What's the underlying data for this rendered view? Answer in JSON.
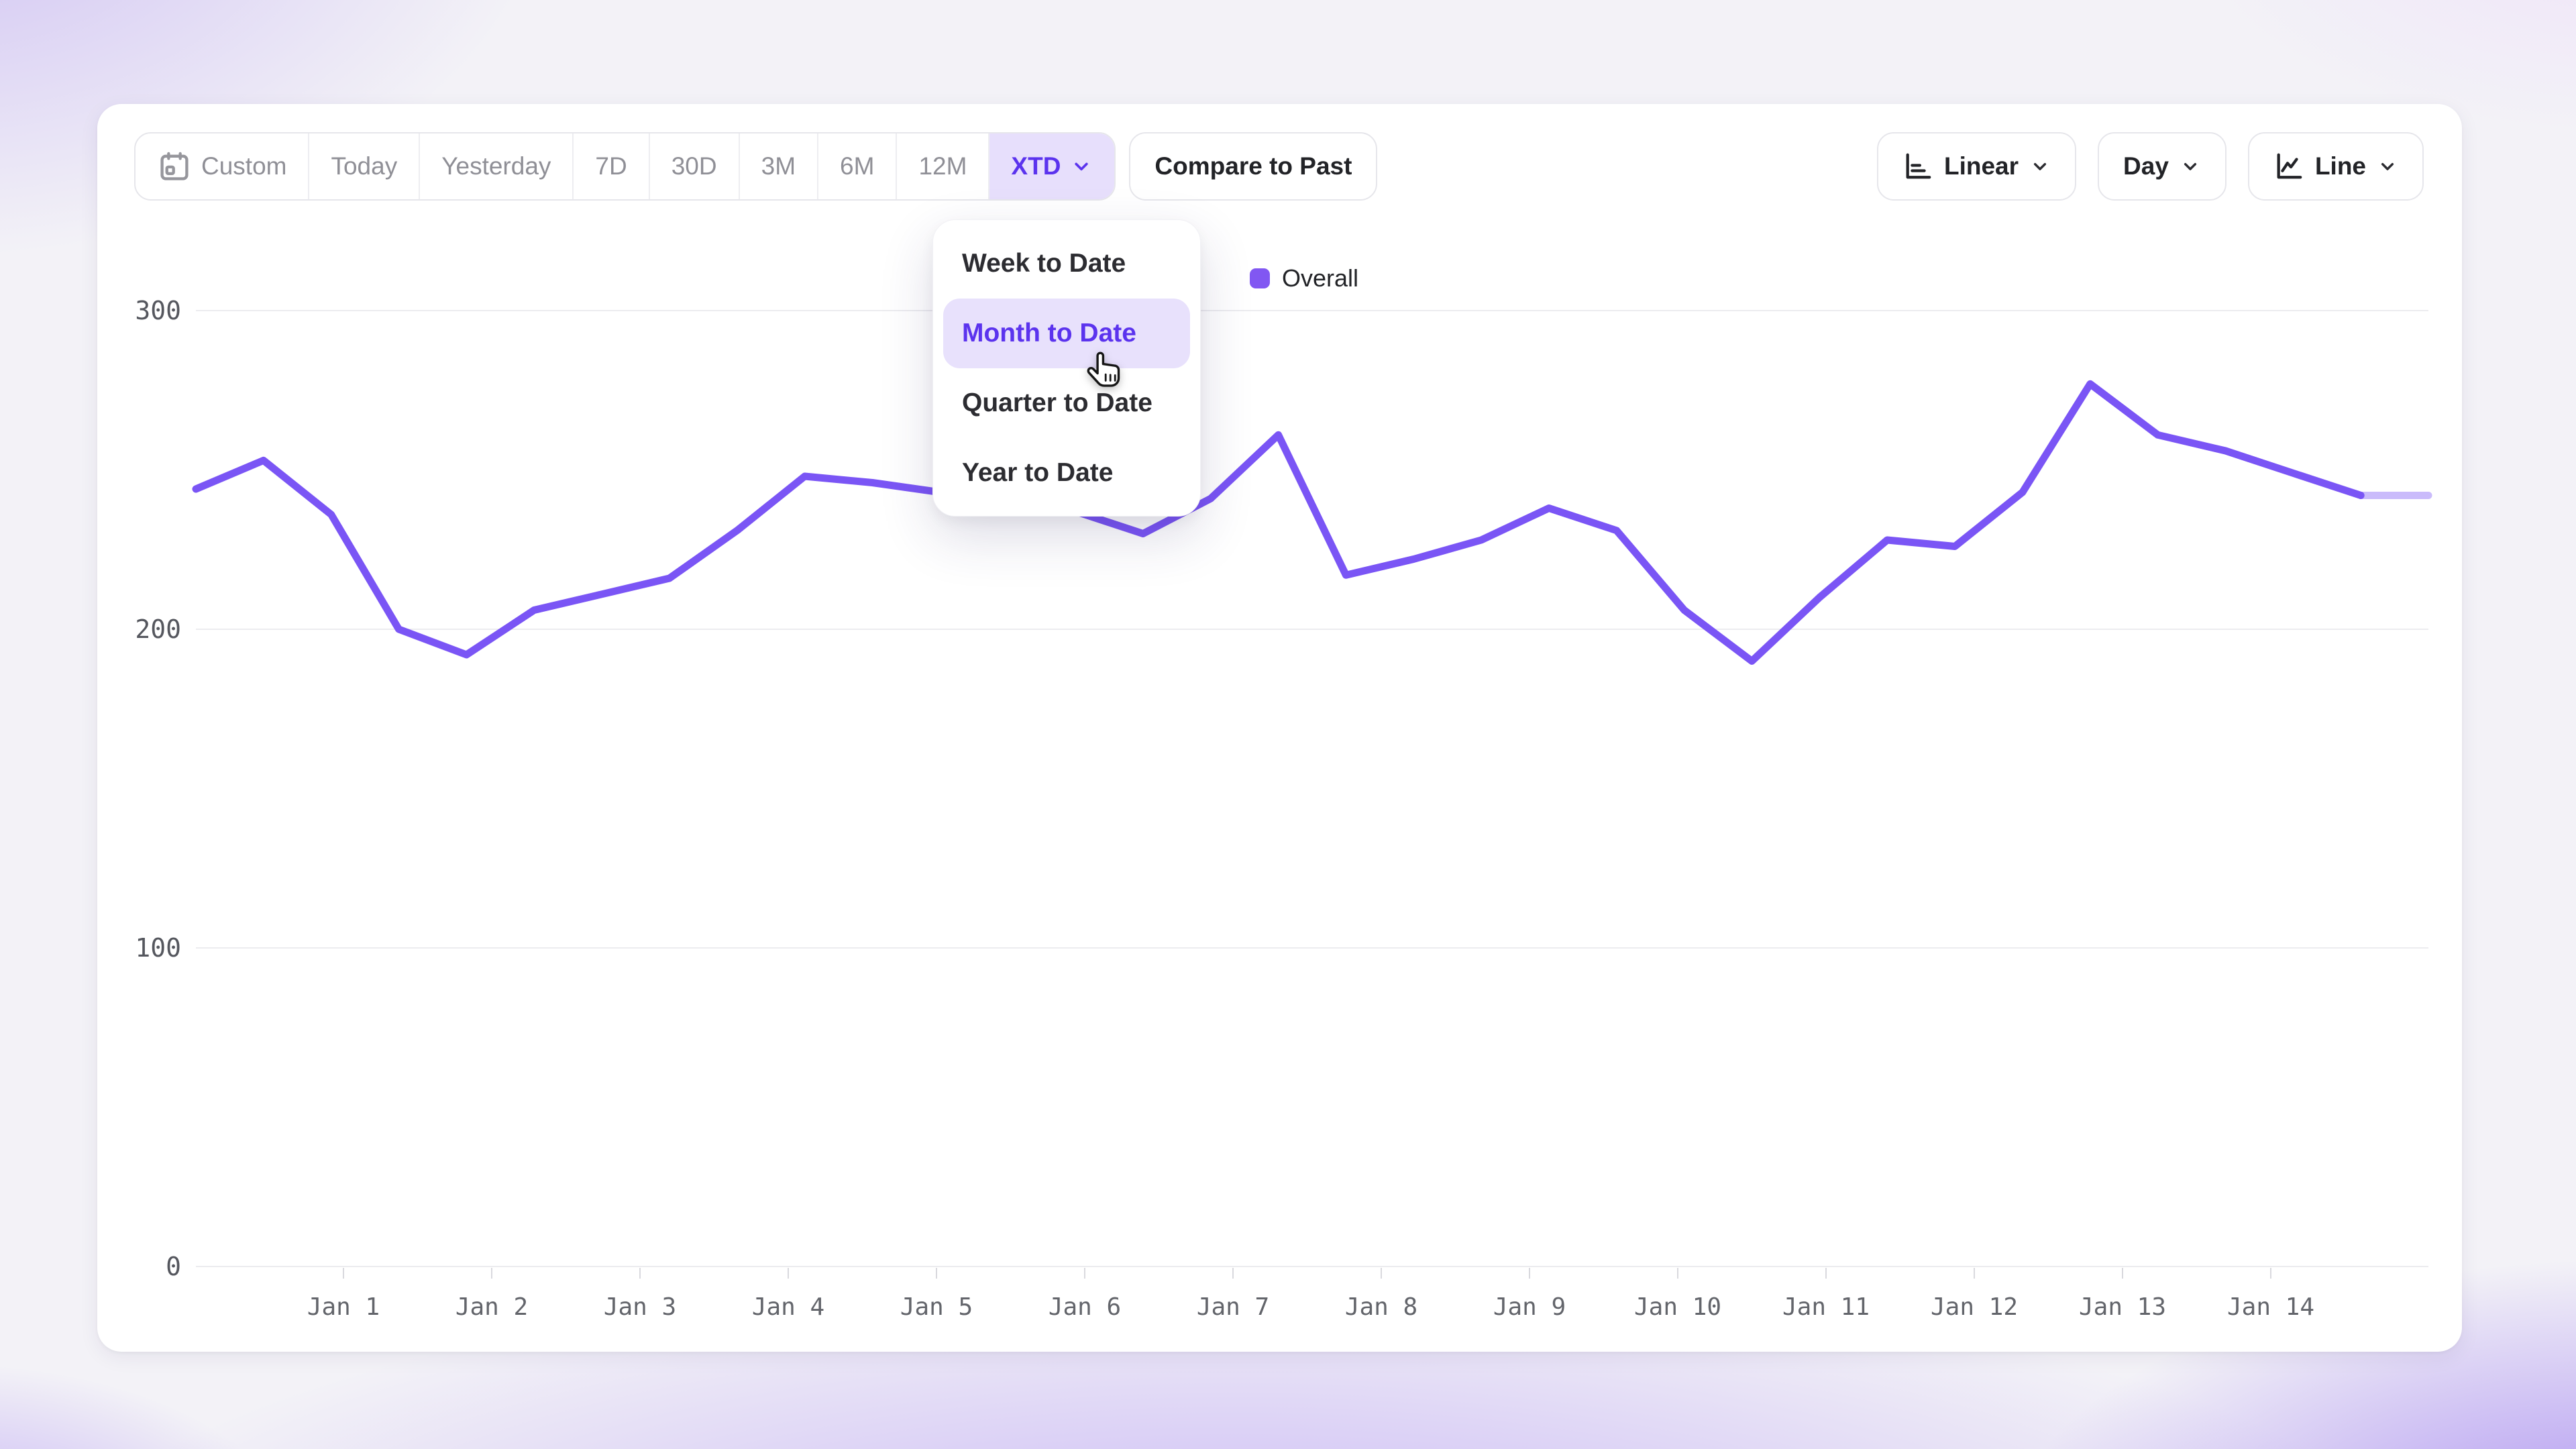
{
  "toolbar": {
    "ranges": [
      {
        "label": "Custom",
        "icon": "calendar"
      },
      {
        "label": "Today"
      },
      {
        "label": "Yesterday"
      },
      {
        "label": "7D"
      },
      {
        "label": "30D"
      },
      {
        "label": "3M"
      },
      {
        "label": "6M"
      },
      {
        "label": "12M"
      },
      {
        "label": "XTD",
        "selected": true,
        "icon": "chevron-down"
      }
    ],
    "compare_button": "Compare to Past",
    "scale_selector": {
      "label": "Linear",
      "icon": "axis"
    },
    "granularity_selector": {
      "label": "Day"
    },
    "chart_type_selector": {
      "label": "Line",
      "icon": "line-chart"
    }
  },
  "dropdown_menu": {
    "items": [
      {
        "label": "Week to Date",
        "active": false
      },
      {
        "label": "Month to Date",
        "active": true
      },
      {
        "label": "Quarter to Date",
        "active": false
      },
      {
        "label": "Year to Date",
        "active": false
      }
    ]
  },
  "legend": {
    "label": "Overall",
    "swatch_color": "#8157f2"
  },
  "chart_data": {
    "type": "line",
    "title": "",
    "series": [
      {
        "name": "Overall",
        "color": "#7a55f5",
        "values": [
          244,
          253,
          236,
          200,
          192,
          206,
          211,
          216,
          231,
          248,
          246,
          243,
          239,
          237,
          230,
          241,
          261,
          217,
          222,
          228,
          238,
          231,
          206,
          190,
          210,
          228,
          226,
          243,
          277,
          261,
          256,
          249,
          242,
          242
        ]
      }
    ],
    "x_tick_labels": [
      "Jan 1",
      "Jan 2",
      "Jan 3",
      "Jan 4",
      "Jan 5",
      "Jan 6",
      "Jan 7",
      "Jan 8",
      "Jan 9",
      "Jan 10",
      "Jan 11",
      "Jan 12",
      "Jan 13",
      "Jan 14"
    ],
    "y_ticks": [
      0,
      100,
      200,
      300
    ],
    "ylim": [
      0,
      300
    ],
    "grid": "horizontal",
    "legend_position": "top-center",
    "partial_last_segment": true
  }
}
